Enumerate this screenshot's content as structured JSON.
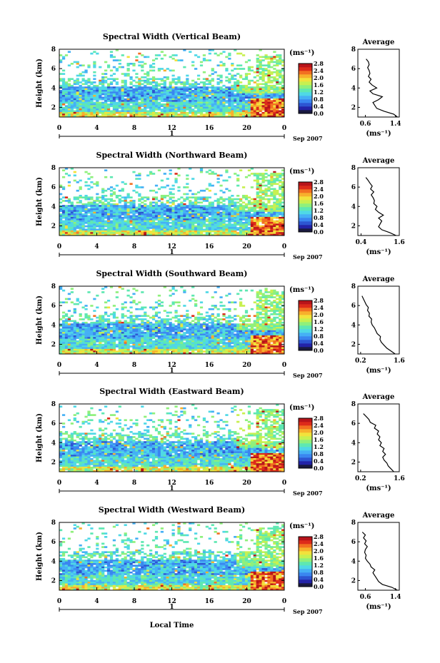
{
  "colors": {
    "colormap": [
      "#1a1a40",
      "#2323a8",
      "#2d55d2",
      "#3a86f0",
      "#45b0f5",
      "#4fd8e6",
      "#5ee8b2",
      "#8ff07c",
      "#c8f050",
      "#f2e23c",
      "#f7b02c",
      "#f27021",
      "#dd2b1a",
      "#b8141a"
    ],
    "axis": "#000000",
    "background": "#ffffff"
  },
  "shared": {
    "y_tick_labels": [
      "2",
      "4",
      "6",
      "8"
    ],
    "x_tick_labels": [
      "0",
      "4",
      "8",
      "12",
      "16",
      "20",
      "0"
    ],
    "day_label": "1",
    "month_label": "Sep 2007",
    "colorbar_unit_label": "(ms⁻¹)",
    "avg_unit_label": "(ms⁻¹)",
    "avg_title": "Average",
    "ylabel": "Height (km)",
    "xlabel": "Local Time"
  },
  "chart_data": [
    {
      "type": "heatmap",
      "title": "Spectral Width (Vertical Beam)",
      "xlabel": "",
      "ylabel": "Height (km)",
      "xlim": [
        0,
        24
      ],
      "ylim": [
        1,
        8
      ],
      "colorbar": {
        "ticks": [
          "0.0",
          "0.4",
          "0.8",
          "1.2",
          "1.6",
          "2.0",
          "2.4",
          "2.8"
        ],
        "range": [
          0,
          2.8
        ]
      },
      "average_profile": {
        "title": "Average",
        "xticks": [
          "0.6",
          "1.4"
        ],
        "xlim": [
          0.4,
          1.5
        ],
        "x": [
          1.45,
          1.35,
          1.1,
          0.9,
          0.85,
          0.8,
          0.95,
          1.05,
          0.8,
          0.72,
          0.9,
          0.78,
          0.7,
          0.75,
          0.68,
          0.72,
          0.7,
          0.66,
          0.7,
          0.68,
          0.62
        ],
        "height": [
          1.0,
          1.3,
          1.6,
          1.9,
          2.2,
          2.5,
          2.8,
          3.1,
          3.4,
          3.7,
          4.0,
          4.3,
          4.6,
          4.9,
          5.2,
          5.5,
          5.8,
          6.1,
          6.4,
          6.7,
          7.0
        ]
      }
    },
    {
      "type": "heatmap",
      "title": "Spectral Width (Northward Beam)",
      "xlabel": "",
      "ylabel": "Height (km)",
      "xlim": [
        0,
        24
      ],
      "ylim": [
        1,
        8
      ],
      "colorbar": {
        "ticks": [
          "0.0",
          "0.4",
          "0.8",
          "1.2",
          "1.6",
          "2.0",
          "2.4",
          "2.8"
        ],
        "range": [
          0,
          2.8
        ]
      },
      "average_profile": {
        "title": "Average",
        "xticks": [
          "0.4",
          "1.6"
        ],
        "xlim": [
          0.3,
          1.6
        ],
        "x": [
          1.5,
          1.3,
          1.05,
          0.95,
          1.0,
          1.05,
          0.95,
          1.1,
          0.95,
          0.85,
          0.9,
          0.8,
          0.82,
          0.78,
          0.72,
          0.8,
          0.7,
          0.75,
          0.68,
          0.62,
          0.55
        ],
        "height": [
          1.0,
          1.3,
          1.6,
          1.9,
          2.2,
          2.5,
          2.8,
          3.1,
          3.4,
          3.7,
          4.0,
          4.3,
          4.6,
          4.9,
          5.2,
          5.5,
          5.8,
          6.1,
          6.4,
          6.7,
          7.0
        ]
      }
    },
    {
      "type": "heatmap",
      "title": "Spectral Width (Southward Beam)",
      "xlabel": "",
      "ylabel": "Height (km)",
      "xlim": [
        0,
        24
      ],
      "ylim": [
        1,
        8
      ],
      "colorbar": {
        "ticks": [
          "0.0",
          "0.4",
          "0.8",
          "1.2",
          "1.6",
          "2.0",
          "2.4",
          "2.8"
        ],
        "range": [
          0,
          2.8
        ]
      },
      "average_profile": {
        "title": "Average",
        "xticks": [
          "0.2",
          "1.6"
        ],
        "xlim": [
          0.1,
          1.6
        ],
        "x": [
          1.45,
          1.3,
          1.15,
          1.05,
          0.95,
          0.9,
          0.92,
          0.8,
          0.75,
          0.7,
          0.62,
          0.58,
          0.6,
          0.5,
          0.52,
          0.45,
          0.48,
          0.4,
          0.35,
          0.3,
          0.25
        ],
        "height": [
          1.0,
          1.3,
          1.6,
          1.9,
          2.2,
          2.5,
          2.8,
          3.1,
          3.4,
          3.7,
          4.0,
          4.3,
          4.6,
          4.9,
          5.2,
          5.5,
          5.8,
          6.1,
          6.4,
          6.7,
          7.0
        ]
      }
    },
    {
      "type": "heatmap",
      "title": "Spectral Width (Eastward Beam)",
      "xlabel": "",
      "ylabel": "Height (km)",
      "xlim": [
        0,
        24
      ],
      "ylim": [
        1,
        8
      ],
      "colorbar": {
        "ticks": [
          "0.0",
          "0.4",
          "0.8",
          "1.2",
          "1.6",
          "2.0",
          "2.4",
          "2.8"
        ],
        "range": [
          0,
          2.8
        ]
      },
      "average_profile": {
        "title": "Average",
        "xticks": [
          "0.2",
          "1.6"
        ],
        "xlim": [
          0.1,
          1.6
        ],
        "x": [
          1.4,
          1.3,
          1.2,
          1.15,
          1.05,
          1.0,
          1.1,
          1.0,
          1.05,
          0.9,
          0.95,
          0.85,
          0.9,
          0.8,
          0.85,
          0.7,
          0.75,
          0.55,
          0.5,
          0.4,
          0.3
        ],
        "height": [
          1.0,
          1.3,
          1.6,
          1.9,
          2.2,
          2.5,
          2.8,
          3.1,
          3.4,
          3.7,
          4.0,
          4.3,
          4.6,
          4.9,
          5.2,
          5.5,
          5.8,
          6.1,
          6.4,
          6.7,
          7.0
        ]
      }
    },
    {
      "type": "heatmap",
      "title": "Spectral Width (Westward Beam)",
      "xlabel": "Local Time",
      "ylabel": "Height (km)",
      "xlim": [
        0,
        24
      ],
      "ylim": [
        1,
        8
      ],
      "colorbar": {
        "ticks": [
          "0.0",
          "0.4",
          "0.8",
          "1.2",
          "1.6",
          "2.0",
          "2.4",
          "2.8"
        ],
        "range": [
          0,
          2.8
        ]
      },
      "average_profile": {
        "title": "Average",
        "xticks": [
          "0.6",
          "1.4"
        ],
        "xlim": [
          0.4,
          1.5
        ],
        "x": [
          1.45,
          1.3,
          1.05,
          0.95,
          0.9,
          0.85,
          0.8,
          0.85,
          0.75,
          0.72,
          0.65,
          0.6,
          0.62,
          0.58,
          0.6,
          0.65,
          0.58,
          0.62,
          0.55,
          0.6,
          0.52
        ],
        "height": [
          1.0,
          1.3,
          1.6,
          1.9,
          2.2,
          2.5,
          2.8,
          3.1,
          3.4,
          3.7,
          4.0,
          4.3,
          4.6,
          4.9,
          5.2,
          5.5,
          5.8,
          6.1,
          6.4,
          6.7,
          7.0
        ]
      }
    }
  ]
}
